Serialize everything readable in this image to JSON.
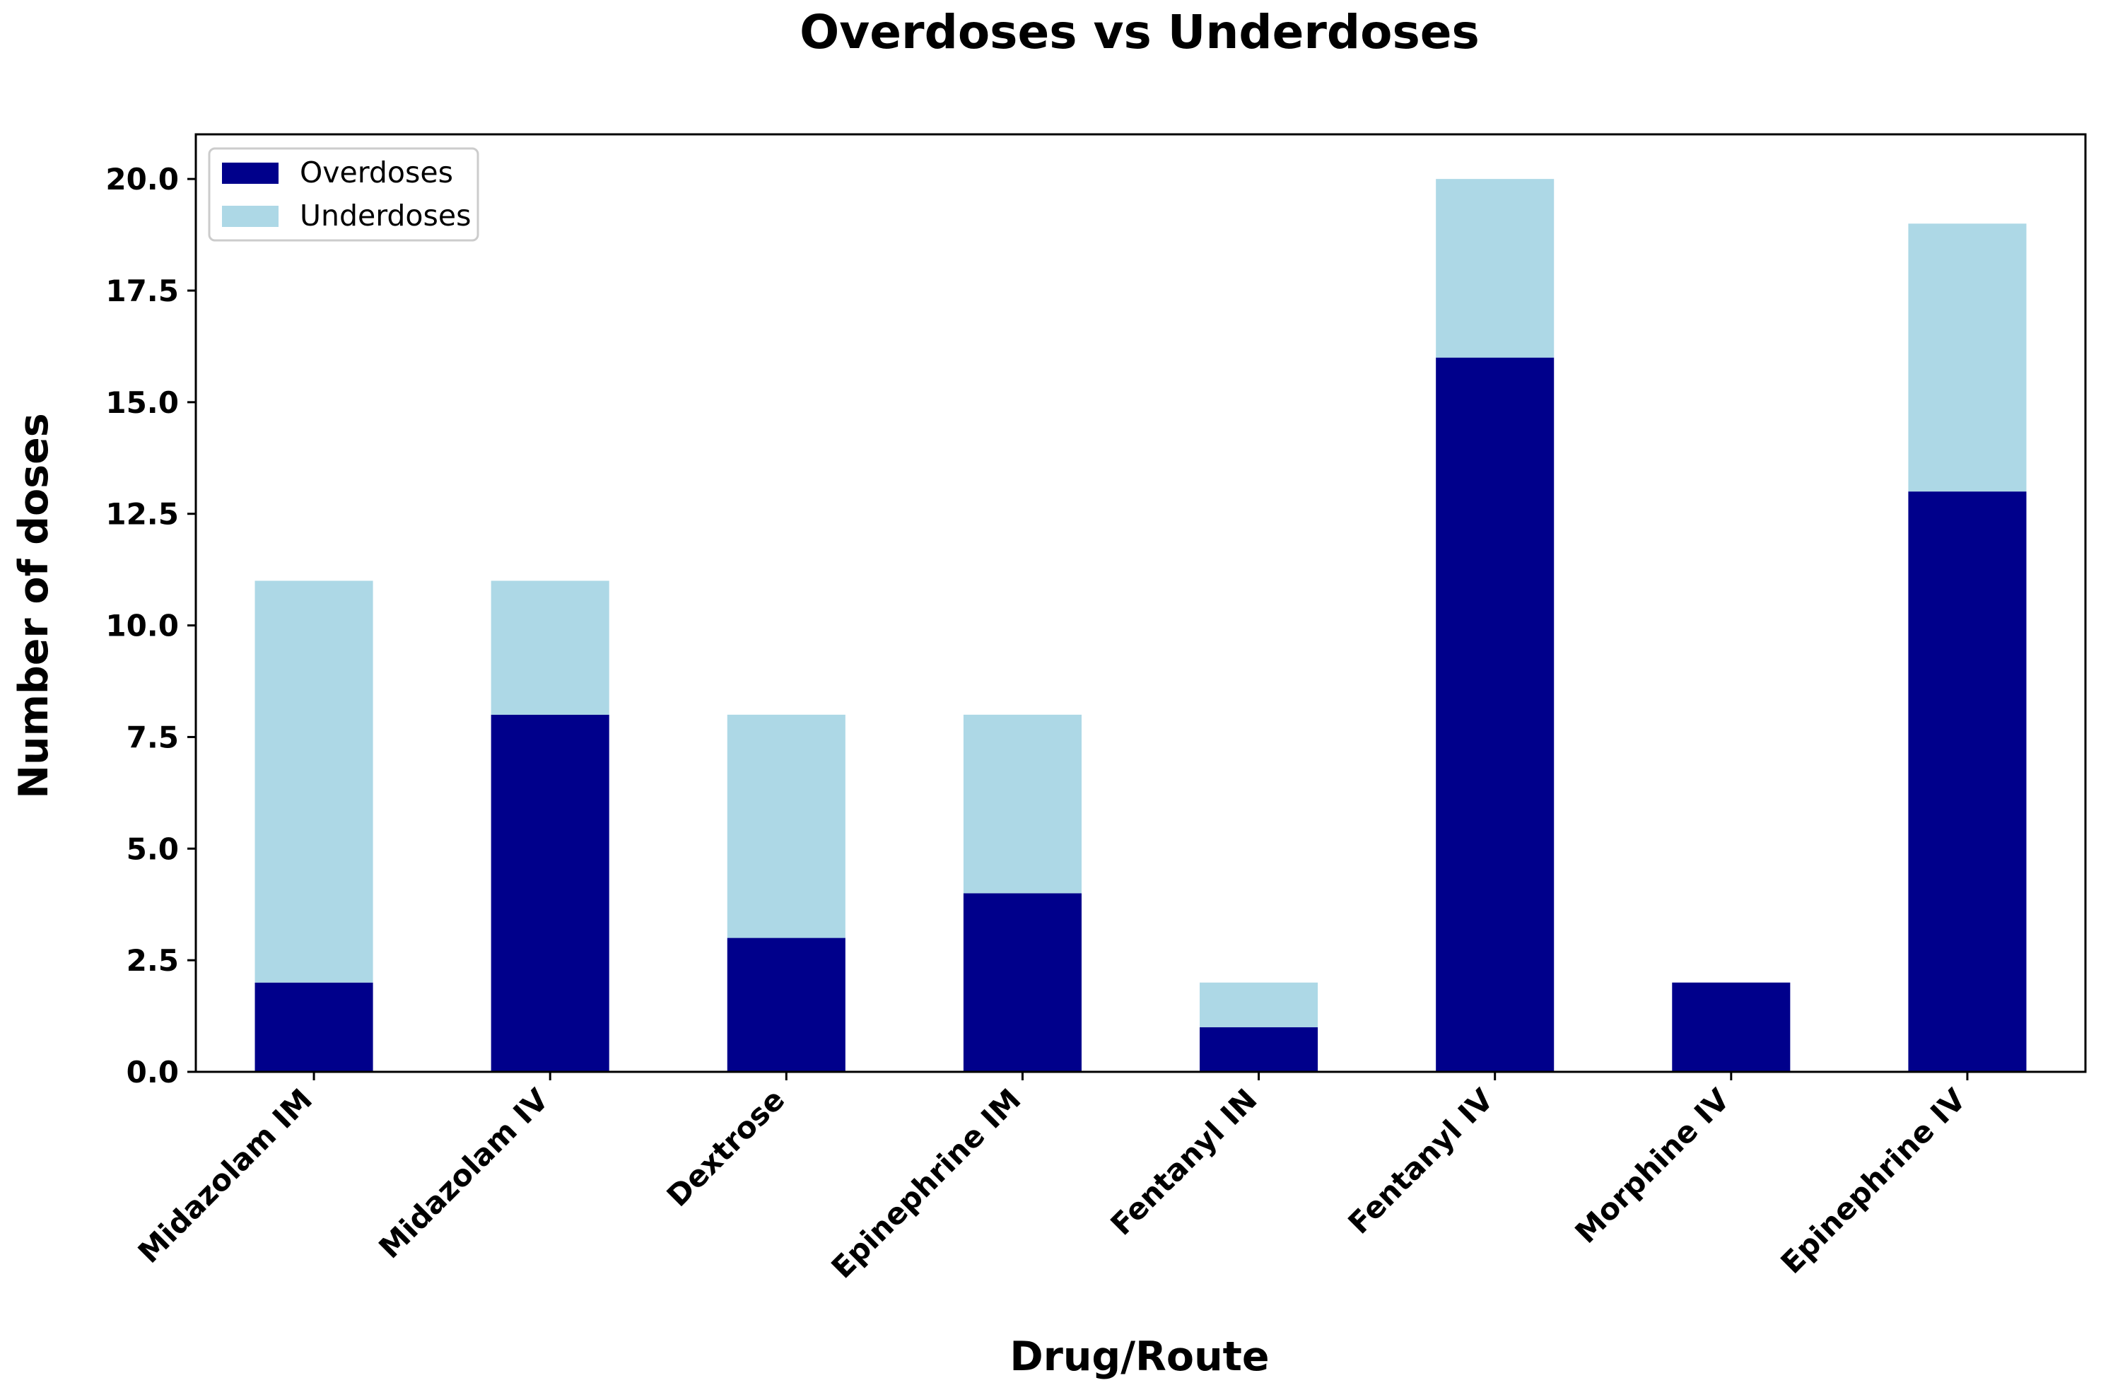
{
  "chart_data": {
    "type": "bar",
    "stacked": true,
    "title": "Overdoses vs Underdoses",
    "xlabel": "Drug/Route",
    "ylabel": "Number of doses",
    "categories": [
      "Midazolam IM",
      "Midazolam IV",
      "Dextrose",
      "Epinephrine IM",
      "Fentanyl IN",
      "Fentanyl IV",
      "Morphine IV",
      "Epinephrine IV"
    ],
    "series": [
      {
        "name": "Overdoses",
        "color": "#00008b",
        "values": [
          2,
          8,
          3,
          4,
          1,
          16,
          2,
          13
        ]
      },
      {
        "name": "Underdoses",
        "color": "#add8e6",
        "values": [
          9,
          3,
          5,
          4,
          1,
          4,
          0,
          6
        ]
      }
    ],
    "ylim": [
      0,
      21
    ],
    "yticks": [
      "0.0",
      "2.5",
      "5.0",
      "7.5",
      "10.0",
      "12.5",
      "15.0",
      "17.5",
      "20.0"
    ],
    "legend_position": "top-left",
    "grid": false
  }
}
